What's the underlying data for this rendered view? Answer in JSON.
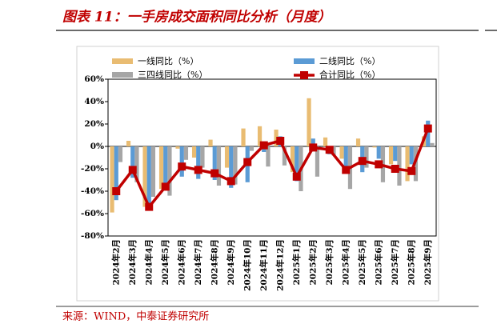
{
  "chart_data": {
    "type": "bar_line",
    "title": "图表 11：一手房成交面积同比分析（月度）",
    "source": "来源：WIND，中泰证券研究所",
    "categories": [
      "2024年2月",
      "2024年3月",
      "2024年4月",
      "2024年5月",
      "2024年6月",
      "2024年7月",
      "2024年8月",
      "2024年9月",
      "2024年10月",
      "2024年11月",
      "2024年12月",
      "2025年1月",
      "2025年2月",
      "2025年3月",
      "2025年4月",
      "2025年5月",
      "2025年6月",
      "2025年7月",
      "2025年8月",
      "2025年9月"
    ],
    "series": [
      {
        "name": "一线同比（%）",
        "color": "#e9bc72",
        "kind": "bar",
        "values": [
          -59,
          5,
          -54,
          -38,
          -2,
          -10,
          6,
          -19,
          16,
          18,
          15,
          -23,
          43,
          8,
          -11,
          7,
          -1,
          -16,
          -31,
          9
        ]
      },
      {
        "name": "二线同比（%）",
        "color": "#5b9bd5",
        "kind": "bar",
        "values": [
          -48,
          -28,
          -54,
          -39,
          -27,
          -29,
          -30,
          -37,
          -32,
          -5,
          9,
          -31,
          7,
          -7,
          -19,
          -23,
          -11,
          -13,
          -16,
          23
        ]
      },
      {
        "name": "三四线同比（%）",
        "color": "#a6a6a6",
        "kind": "bar",
        "values": [
          -14,
          -32,
          -45,
          -44,
          -12,
          -19,
          -35,
          -34,
          -4,
          -18,
          -17,
          -40,
          -27,
          -8,
          -38,
          -19,
          -32,
          -35,
          -31,
          3
        ]
      },
      {
        "name": "合计同比（%）",
        "color": "#c00000",
        "kind": "line",
        "values": [
          -40,
          -21,
          -54,
          -36,
          -18,
          -21,
          -24,
          -31,
          -14,
          1,
          5,
          -27,
          -1,
          -3,
          -21,
          -13,
          -16,
          -20,
          -22,
          16
        ]
      }
    ],
    "ylim": [
      -80,
      60
    ],
    "yticks": [
      {
        "value": -80,
        "label": "-80%"
      },
      {
        "value": -60,
        "label": "-60%"
      },
      {
        "value": -40,
        "label": "-40%"
      },
      {
        "value": -20,
        "label": "-20%"
      },
      {
        "value": 0,
        "label": "0%"
      },
      {
        "value": 20,
        "label": "20%"
      },
      {
        "value": 40,
        "label": "40%"
      },
      {
        "value": 60,
        "label": "60%"
      }
    ]
  }
}
